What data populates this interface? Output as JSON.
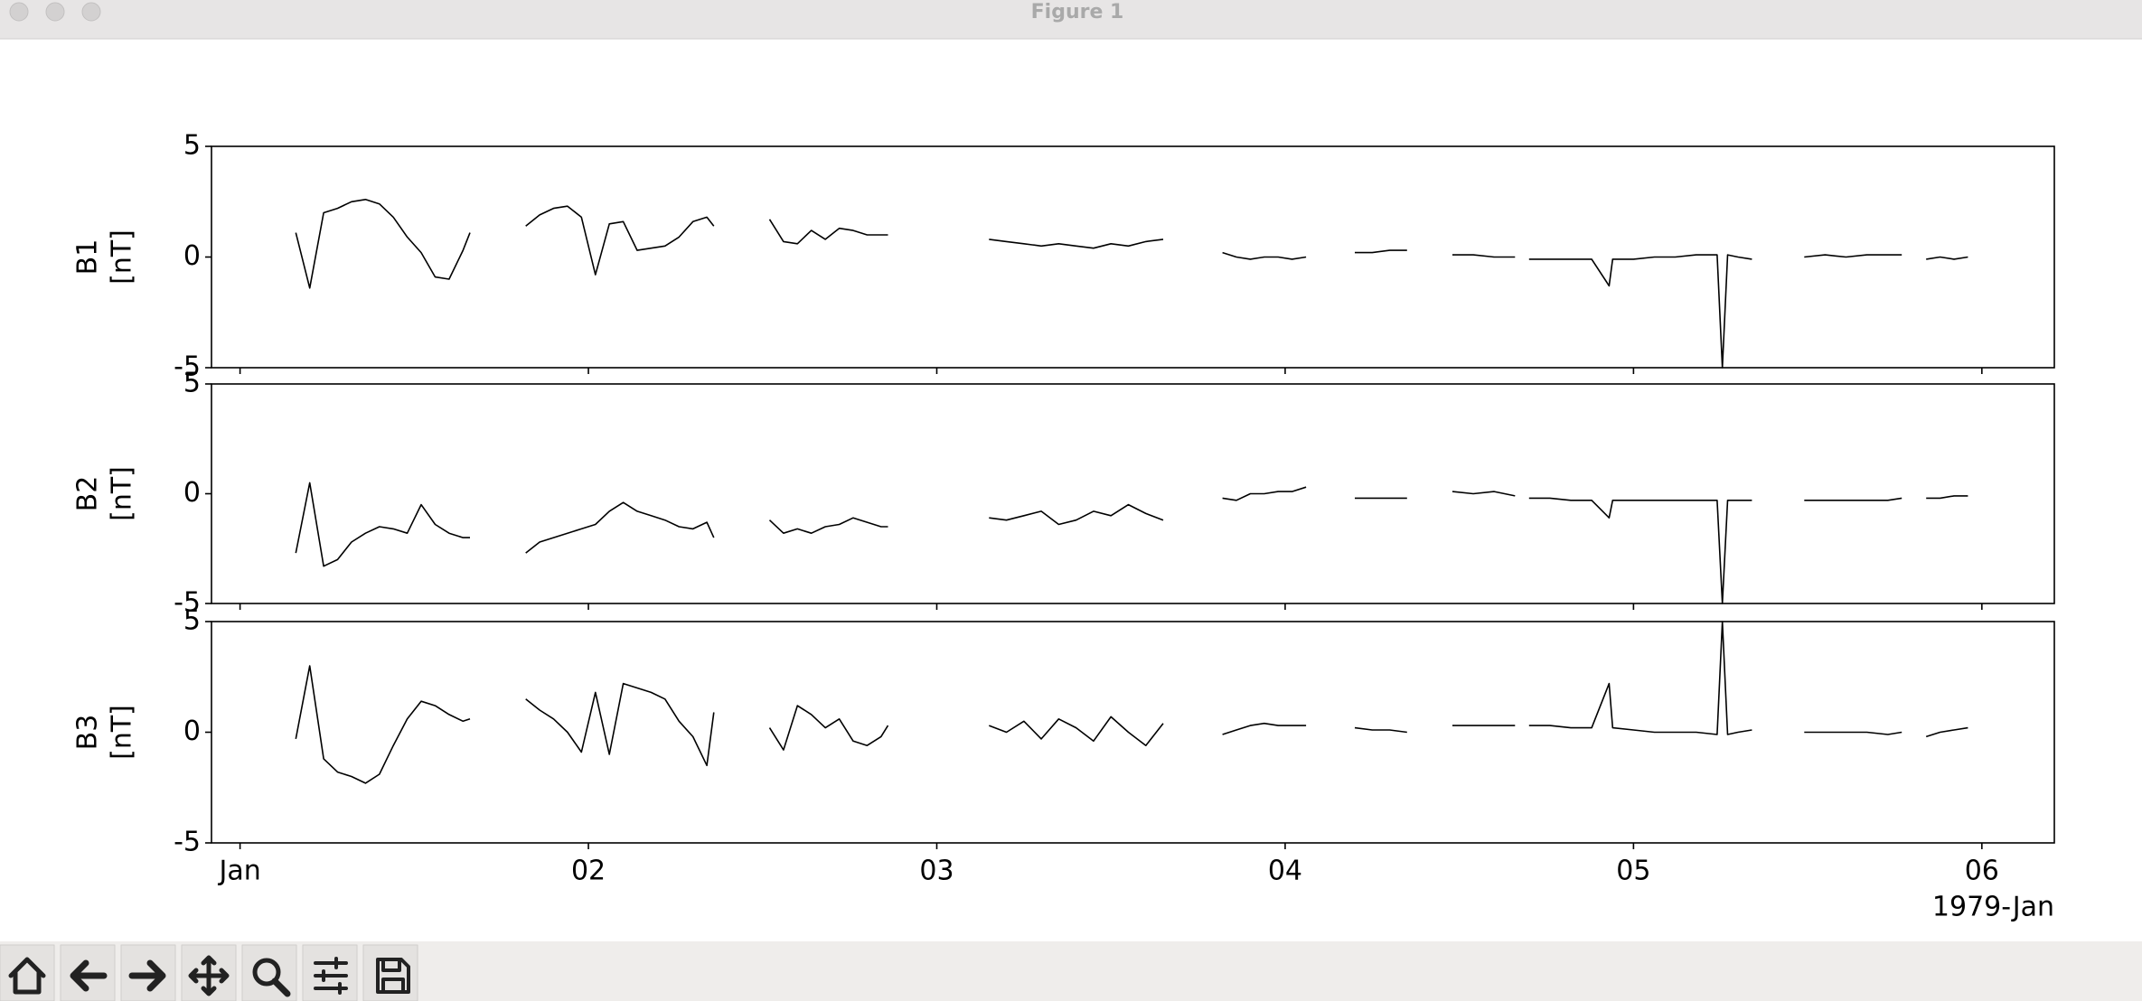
{
  "window": {
    "title": "Figure 1"
  },
  "chart_data": [
    {
      "type": "line",
      "ylabel": [
        "B1",
        "[nT]"
      ],
      "color": "#000000",
      "xlim": [
        0.918,
        6.208
      ],
      "ylim": [
        -5,
        5
      ],
      "yticks": [
        -5,
        0,
        5
      ],
      "xticks": [
        1,
        2,
        3,
        4,
        5,
        6
      ],
      "x": [
        1.16,
        1.2,
        1.24,
        1.28,
        1.32,
        1.36,
        1.4,
        1.44,
        1.48,
        1.52,
        1.56,
        1.6,
        1.64,
        1.66,
        1.74,
        1.82,
        1.86,
        1.9,
        1.94,
        1.98,
        2.02,
        2.06,
        2.1,
        2.14,
        2.18,
        2.22,
        2.26,
        2.3,
        2.34,
        2.36,
        2.44,
        2.52,
        2.56,
        2.6,
        2.64,
        2.68,
        2.72,
        2.76,
        2.8,
        2.84,
        2.86,
        3.0,
        3.15,
        3.2,
        3.25,
        3.3,
        3.35,
        3.4,
        3.45,
        3.5,
        3.55,
        3.6,
        3.65,
        3.74,
        3.82,
        3.86,
        3.9,
        3.94,
        3.98,
        4.02,
        4.06,
        4.13,
        4.2,
        4.25,
        4.3,
        4.35,
        4.42,
        4.48,
        4.54,
        4.6,
        4.66,
        4.68,
        4.7,
        4.76,
        4.82,
        4.88,
        4.93,
        4.94,
        5.0,
        5.06,
        5.12,
        5.18,
        5.24,
        5.255,
        5.27,
        5.3,
        5.34,
        5.42,
        5.49,
        5.55,
        5.61,
        5.67,
        5.73,
        5.77,
        5.8,
        5.84,
        5.88,
        5.92,
        5.96
      ],
      "values": [
        1.1,
        -1.4,
        2.0,
        2.2,
        2.5,
        2.6,
        2.4,
        1.8,
        0.9,
        0.2,
        -0.9,
        -1.0,
        0.3,
        1.1,
        null,
        1.4,
        1.9,
        2.2,
        2.3,
        1.8,
        -0.8,
        1.5,
        1.6,
        0.3,
        0.4,
        0.5,
        0.9,
        1.6,
        1.8,
        1.4,
        null,
        1.7,
        0.7,
        0.6,
        1.2,
        0.8,
        1.3,
        1.2,
        1.0,
        1.0,
        1.0,
        null,
        0.8,
        0.7,
        0.6,
        0.5,
        0.6,
        0.5,
        0.4,
        0.6,
        0.5,
        0.7,
        0.8,
        null,
        0.2,
        0.0,
        -0.1,
        0.0,
        0.0,
        -0.1,
        0.0,
        null,
        0.2,
        0.2,
        0.3,
        0.3,
        null,
        0.1,
        0.1,
        0.0,
        0.0,
        null,
        -0.1,
        -0.1,
        -0.1,
        -0.1,
        -1.3,
        -0.1,
        -0.1,
        0.0,
        0.0,
        0.1,
        0.1,
        -5,
        0.1,
        0.0,
        -0.1,
        null,
        0.0,
        0.1,
        0.0,
        0.1,
        0.1,
        0.1,
        null,
        -0.1,
        0.0,
        -0.1,
        0.0
      ]
    },
    {
      "type": "line",
      "ylabel": [
        "B2",
        "[nT]"
      ],
      "color": "#000000",
      "xlim": [
        0.918,
        6.208
      ],
      "ylim": [
        -5,
        5
      ],
      "yticks": [
        -5,
        0,
        5
      ],
      "xticks": [
        1,
        2,
        3,
        4,
        5,
        6
      ],
      "x": [
        1.16,
        1.2,
        1.24,
        1.28,
        1.32,
        1.36,
        1.4,
        1.44,
        1.48,
        1.52,
        1.56,
        1.6,
        1.64,
        1.66,
        1.74,
        1.82,
        1.86,
        1.9,
        1.94,
        1.98,
        2.02,
        2.06,
        2.1,
        2.14,
        2.18,
        2.22,
        2.26,
        2.3,
        2.34,
        2.36,
        2.44,
        2.52,
        2.56,
        2.6,
        2.64,
        2.68,
        2.72,
        2.76,
        2.8,
        2.84,
        2.86,
        3.0,
        3.15,
        3.2,
        3.25,
        3.3,
        3.35,
        3.4,
        3.45,
        3.5,
        3.55,
        3.6,
        3.65,
        3.74,
        3.82,
        3.86,
        3.9,
        3.94,
        3.98,
        4.02,
        4.06,
        4.13,
        4.2,
        4.25,
        4.3,
        4.35,
        4.42,
        4.48,
        4.54,
        4.6,
        4.66,
        4.68,
        4.7,
        4.76,
        4.82,
        4.88,
        4.93,
        4.94,
        5.0,
        5.06,
        5.12,
        5.18,
        5.24,
        5.255,
        5.27,
        5.3,
        5.34,
        5.42,
        5.49,
        5.55,
        5.61,
        5.67,
        5.73,
        5.77,
        5.8,
        5.84,
        5.88,
        5.92,
        5.96
      ],
      "values": [
        -2.7,
        0.5,
        -3.3,
        -3.0,
        -2.2,
        -1.8,
        -1.5,
        -1.6,
        -1.8,
        -0.5,
        -1.4,
        -1.8,
        -2.0,
        -2.0,
        null,
        -2.7,
        -2.2,
        -2.0,
        -1.8,
        -1.6,
        -1.4,
        -0.8,
        -0.4,
        -0.8,
        -1.0,
        -1.2,
        -1.5,
        -1.6,
        -1.3,
        -2.0,
        null,
        -1.2,
        -1.8,
        -1.6,
        -1.8,
        -1.5,
        -1.4,
        -1.1,
        -1.3,
        -1.5,
        -1.5,
        null,
        -1.1,
        -1.2,
        -1.0,
        -0.8,
        -1.4,
        -1.2,
        -0.8,
        -1.0,
        -0.5,
        -0.9,
        -1.2,
        null,
        -0.2,
        -0.3,
        0.0,
        0.0,
        0.1,
        0.1,
        0.3,
        null,
        -0.2,
        -0.2,
        -0.2,
        -0.2,
        null,
        0.1,
        0.0,
        0.1,
        -0.1,
        null,
        -0.2,
        -0.2,
        -0.3,
        -0.3,
        -1.1,
        -0.3,
        -0.3,
        -0.3,
        -0.3,
        -0.3,
        -0.3,
        -5,
        -0.3,
        -0.3,
        -0.3,
        null,
        -0.3,
        -0.3,
        -0.3,
        -0.3,
        -0.3,
        -0.2,
        null,
        -0.2,
        -0.2,
        -0.1,
        -0.1
      ]
    },
    {
      "type": "line",
      "ylabel": [
        "B3",
        "[nT]"
      ],
      "color": "#000000",
      "xlim": [
        0.918,
        6.208
      ],
      "ylim": [
        -5,
        5
      ],
      "yticks": [
        -5,
        0,
        5
      ],
      "xticks": [
        {
          "value": 1,
          "label": "Jan"
        },
        {
          "value": 2,
          "label": "02"
        },
        {
          "value": 3,
          "label": "03"
        },
        {
          "value": 4,
          "label": "04"
        },
        {
          "value": 5,
          "label": "05"
        },
        {
          "value": 6,
          "label": "06"
        }
      ],
      "x_offset_label": "1979-Jan",
      "x": [
        1.16,
        1.2,
        1.24,
        1.28,
        1.32,
        1.36,
        1.4,
        1.44,
        1.48,
        1.52,
        1.56,
        1.6,
        1.64,
        1.66,
        1.74,
        1.82,
        1.86,
        1.9,
        1.94,
        1.98,
        2.02,
        2.06,
        2.1,
        2.14,
        2.18,
        2.22,
        2.26,
        2.3,
        2.34,
        2.36,
        2.44,
        2.52,
        2.56,
        2.6,
        2.64,
        2.68,
        2.72,
        2.76,
        2.8,
        2.84,
        2.86,
        3.0,
        3.15,
        3.2,
        3.25,
        3.3,
        3.35,
        3.4,
        3.45,
        3.5,
        3.55,
        3.6,
        3.65,
        3.74,
        3.82,
        3.86,
        3.9,
        3.94,
        3.98,
        4.02,
        4.06,
        4.13,
        4.2,
        4.25,
        4.3,
        4.35,
        4.42,
        4.48,
        4.54,
        4.6,
        4.66,
        4.68,
        4.7,
        4.76,
        4.82,
        4.88,
        4.93,
        4.94,
        5.0,
        5.06,
        5.12,
        5.18,
        5.24,
        5.255,
        5.27,
        5.3,
        5.34,
        5.42,
        5.49,
        5.55,
        5.61,
        5.67,
        5.73,
        5.77,
        5.8,
        5.84,
        5.88,
        5.92,
        5.96
      ],
      "values": [
        -0.3,
        3.0,
        -1.2,
        -1.8,
        -2.0,
        -2.3,
        -1.9,
        -0.6,
        0.6,
        1.4,
        1.2,
        0.8,
        0.5,
        0.6,
        null,
        1.5,
        1.0,
        0.6,
        0.0,
        -0.9,
        1.8,
        -1.0,
        2.2,
        2.0,
        1.8,
        1.5,
        0.5,
        -0.2,
        -1.5,
        0.9,
        null,
        0.2,
        -0.8,
        1.2,
        0.8,
        0.2,
        0.6,
        -0.4,
        -0.6,
        -0.2,
        0.3,
        null,
        0.3,
        0.0,
        0.5,
        -0.3,
        0.6,
        0.2,
        -0.4,
        0.7,
        0.0,
        -0.6,
        0.4,
        null,
        -0.1,
        0.1,
        0.3,
        0.4,
        0.3,
        0.3,
        0.3,
        null,
        0.2,
        0.1,
        0.1,
        0.0,
        null,
        0.3,
        0.3,
        0.3,
        0.3,
        null,
        0.3,
        0.3,
        0.2,
        0.2,
        2.2,
        0.2,
        0.1,
        0.0,
        0.0,
        0.0,
        -0.1,
        5,
        -0.1,
        0.0,
        0.1,
        null,
        0.0,
        0.0,
        0.0,
        0.0,
        -0.1,
        0.0,
        null,
        -0.2,
        0.0,
        0.1,
        0.2
      ]
    }
  ]
}
